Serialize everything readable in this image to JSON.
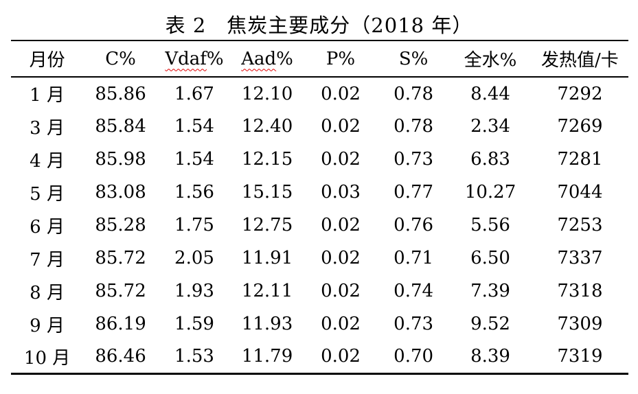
{
  "title": "表 2　焦炭主要成分（2018 年）",
  "colors": {
    "background": "#ffffff",
    "text": "#000000",
    "rule_line": "#000000",
    "spellcheck_underline": "#e00000"
  },
  "table": {
    "columns": [
      {
        "id": "month",
        "label": "月份",
        "spellcheck": false
      },
      {
        "id": "c_percent",
        "label": "C%",
        "spellcheck": false
      },
      {
        "id": "vdaf_percent",
        "label": "Vdaf%",
        "spellcheck": true,
        "word": "Vdaf",
        "suffix": "%"
      },
      {
        "id": "aad_percent",
        "label": "Aad%",
        "spellcheck": true,
        "word": "Aad",
        "suffix": "%"
      },
      {
        "id": "p_percent",
        "label": "P%",
        "spellcheck": false
      },
      {
        "id": "s_percent",
        "label": "S%",
        "spellcheck": false
      },
      {
        "id": "total_moisture_percent",
        "label": "全水%",
        "spellcheck": false
      },
      {
        "id": "calorific_value",
        "label": "发热值/卡",
        "spellcheck": false
      }
    ],
    "rows": [
      [
        "1 月",
        "85.86",
        "1.67",
        "12.10",
        "0.02",
        "0.78",
        "8.44",
        "7292"
      ],
      [
        "3 月",
        "85.84",
        "1.54",
        "12.40",
        "0.02",
        "0.78",
        "2.34",
        "7269"
      ],
      [
        "4 月",
        "85.98",
        "1.54",
        "12.15",
        "0.02",
        "0.73",
        "6.83",
        "7281"
      ],
      [
        "5 月",
        "83.08",
        "1.56",
        "15.15",
        "0.03",
        "0.77",
        "10.27",
        "7044"
      ],
      [
        "6 月",
        "85.28",
        "1.75",
        "12.75",
        "0.02",
        "0.76",
        "5.56",
        "7253"
      ],
      [
        "7 月",
        "85.72",
        "2.05",
        "11.91",
        "0.02",
        "0.71",
        "6.50",
        "7337"
      ],
      [
        "8 月",
        "85.72",
        "1.93",
        "12.11",
        "0.02",
        "0.74",
        "7.39",
        "7318"
      ],
      [
        "9 月",
        "86.19",
        "1.59",
        "11.93",
        "0.02",
        "0.73",
        "9.52",
        "7309"
      ],
      [
        "10 月",
        "86.46",
        "1.53",
        "11.79",
        "0.02",
        "0.70",
        "8.39",
        "7319"
      ]
    ]
  }
}
